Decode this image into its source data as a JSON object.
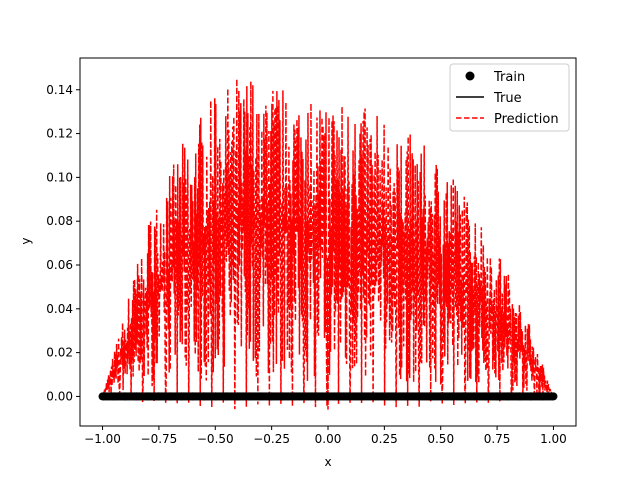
{
  "chart_data": {
    "type": "line",
    "title": "",
    "xlabel": "x",
    "ylabel": "y",
    "xlim": [
      -1.1,
      1.1
    ],
    "ylim": [
      -0.0135,
      0.1545
    ],
    "xticks": [
      -1.0,
      -0.75,
      -0.5,
      -0.25,
      0.0,
      0.25,
      0.5,
      0.75,
      1.0
    ],
    "xtick_labels": [
      "−1.00",
      "−0.75",
      "−0.50",
      "−0.25",
      "0.00",
      "0.25",
      "0.50",
      "0.75",
      "1.00"
    ],
    "yticks": [
      0.0,
      0.02,
      0.04,
      0.06,
      0.08,
      0.1,
      0.12,
      0.14
    ],
    "ytick_labels": [
      "0.00",
      "0.02",
      "0.04",
      "0.06",
      "0.08",
      "0.10",
      "0.12",
      "0.14"
    ],
    "grid": false,
    "legend_position": "top-right",
    "series": [
      {
        "name": "Train",
        "kind": "scatter",
        "color": "#000000",
        "x": [
          -1.0,
          -0.95,
          -0.9,
          -0.85,
          -0.8,
          -0.75,
          -0.7,
          -0.65,
          -0.6,
          -0.55,
          -0.5,
          -0.45,
          -0.4,
          -0.35,
          -0.3,
          -0.25,
          -0.2,
          -0.15,
          -0.1,
          -0.05,
          0.0,
          0.05,
          0.1,
          0.15,
          0.2,
          0.25,
          0.3,
          0.35,
          0.4,
          0.45,
          0.5,
          0.55,
          0.6,
          0.65,
          0.7,
          0.75,
          0.8,
          0.85,
          0.9,
          0.95,
          1.0
        ],
        "y": [
          0,
          0,
          0,
          0,
          0,
          0,
          0,
          0,
          0,
          0,
          0,
          0,
          0,
          0,
          0,
          0,
          0,
          0,
          0,
          0,
          0,
          0,
          0,
          0,
          0,
          0,
          0,
          0,
          0,
          0,
          0,
          0,
          0,
          0,
          0,
          0,
          0,
          0,
          0,
          0,
          0
        ]
      },
      {
        "name": "True",
        "kind": "line",
        "color": "#000000",
        "x": [
          -1.0,
          1.0
        ],
        "y": [
          0.0,
          0.0
        ]
      },
      {
        "name": "Prediction",
        "kind": "dashed-line",
        "color": "#ff0000",
        "envelope_x": [
          -1.0,
          -0.9,
          -0.8,
          -0.7,
          -0.6,
          -0.5,
          -0.4,
          -0.35,
          -0.3,
          -0.2,
          -0.1,
          0.0,
          0.1,
          0.2,
          0.3,
          0.4,
          0.5,
          0.6,
          0.7,
          0.8,
          0.9,
          1.0
        ],
        "envelope_y": [
          0.0,
          0.04,
          0.08,
          0.105,
          0.125,
          0.138,
          0.147,
          0.151,
          0.149,
          0.143,
          0.14,
          0.138,
          0.135,
          0.13,
          0.125,
          0.118,
          0.108,
          0.095,
          0.078,
          0.057,
          0.032,
          0.0
        ]
      }
    ]
  }
}
